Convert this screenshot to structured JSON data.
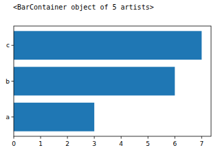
{
  "chart_data": {
    "type": "bar",
    "orientation": "horizontal",
    "title": "<BarContainer object of 5 artists>",
    "categories": [
      "a",
      "b",
      "c"
    ],
    "values": [
      3,
      6,
      7
    ],
    "color": "#1f77b4",
    "xlim": [
      0,
      7.35
    ],
    "xticks": [
      0,
      1,
      2,
      3,
      4,
      5,
      6,
      7
    ],
    "grid": false
  }
}
